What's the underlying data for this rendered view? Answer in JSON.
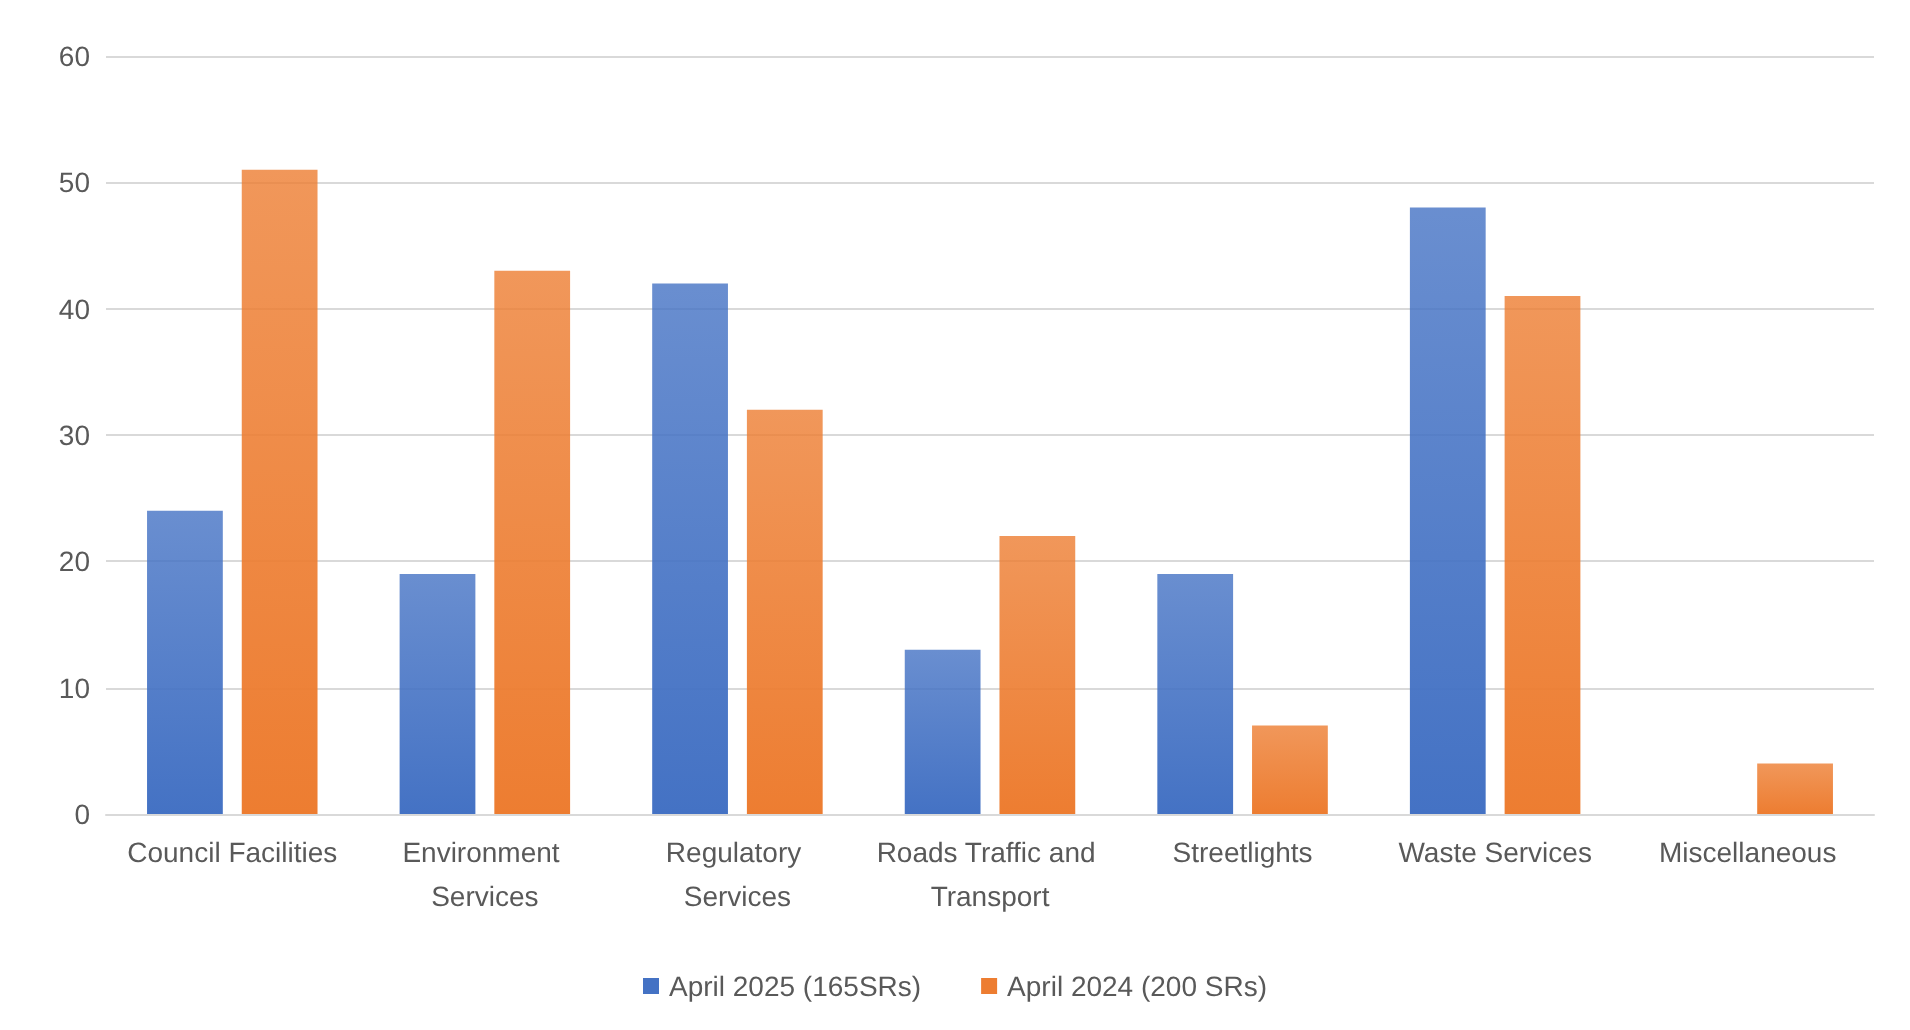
{
  "chart_data": {
    "type": "bar",
    "categories": [
      "Council Facilities",
      "Environment Services",
      "Regulatory Services",
      "Roads Traffic and Transport",
      "Streetlights",
      "Waste Services",
      "Miscellaneous"
    ],
    "series": [
      {
        "name": "April 2025 (165SRs)",
        "color": "#4472c4",
        "values": [
          24,
          19,
          42,
          13,
          19,
          48,
          0
        ]
      },
      {
        "name": "April 2024 (200 SRs)",
        "color": "#ed7d31",
        "values": [
          51,
          43,
          32,
          22,
          7,
          41,
          4
        ]
      }
    ],
    "ylim": [
      0,
      60
    ],
    "yticks": [
      0,
      10,
      20,
      30,
      40,
      50,
      60
    ],
    "grid": "y",
    "legend": "bottom"
  }
}
